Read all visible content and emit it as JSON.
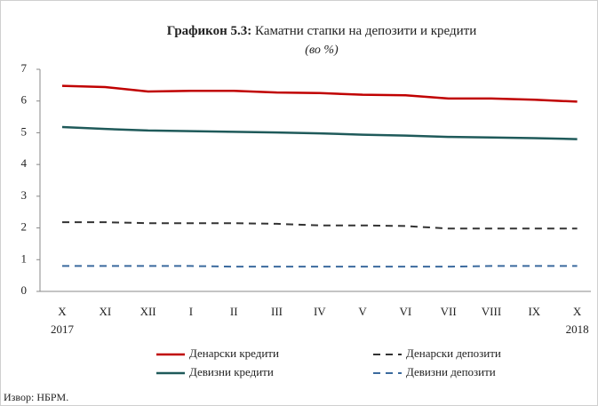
{
  "chart_data": {
    "type": "line",
    "title": "Графикон 5.3:",
    "title_rest": "Каматни стапки на депозити и кредити",
    "subtitle": "(во %)",
    "source": "Извор: НБРМ.",
    "categories": [
      "X",
      "XI",
      "XII",
      "I",
      "II",
      "III",
      "IV",
      "V",
      "VI",
      "VII",
      "VIII",
      "IX",
      "X"
    ],
    "years": [
      "2017",
      "2018"
    ],
    "series": [
      {
        "name": "Денарски кредити",
        "color": "#c00000",
        "dashed": false,
        "values": [
          6.48,
          6.44,
          6.3,
          6.32,
          6.32,
          6.27,
          6.25,
          6.2,
          6.18,
          6.08,
          6.08,
          6.04,
          5.98
        ]
      },
      {
        "name": "Денарски депозити",
        "color": "#333333",
        "dashed": true,
        "values": [
          2.18,
          2.18,
          2.15,
          2.15,
          2.15,
          2.13,
          2.08,
          2.08,
          2.06,
          1.98,
          1.98,
          1.98,
          1.98
        ]
      },
      {
        "name": "Девизни кредити",
        "color": "#1f5a5a",
        "dashed": false,
        "values": [
          5.18,
          5.12,
          5.07,
          5.05,
          5.03,
          5.01,
          4.98,
          4.94,
          4.91,
          4.87,
          4.85,
          4.83,
          4.8
        ]
      },
      {
        "name": "Девизни депозити",
        "color": "#3b6a9e",
        "dashed": true,
        "values": [
          0.8,
          0.8,
          0.8,
          0.8,
          0.78,
          0.78,
          0.78,
          0.78,
          0.78,
          0.78,
          0.8,
          0.8,
          0.8
        ]
      }
    ],
    "ylim": [
      0,
      7
    ],
    "yticks": [
      0,
      1,
      2,
      3,
      4,
      5,
      6,
      7
    ]
  }
}
